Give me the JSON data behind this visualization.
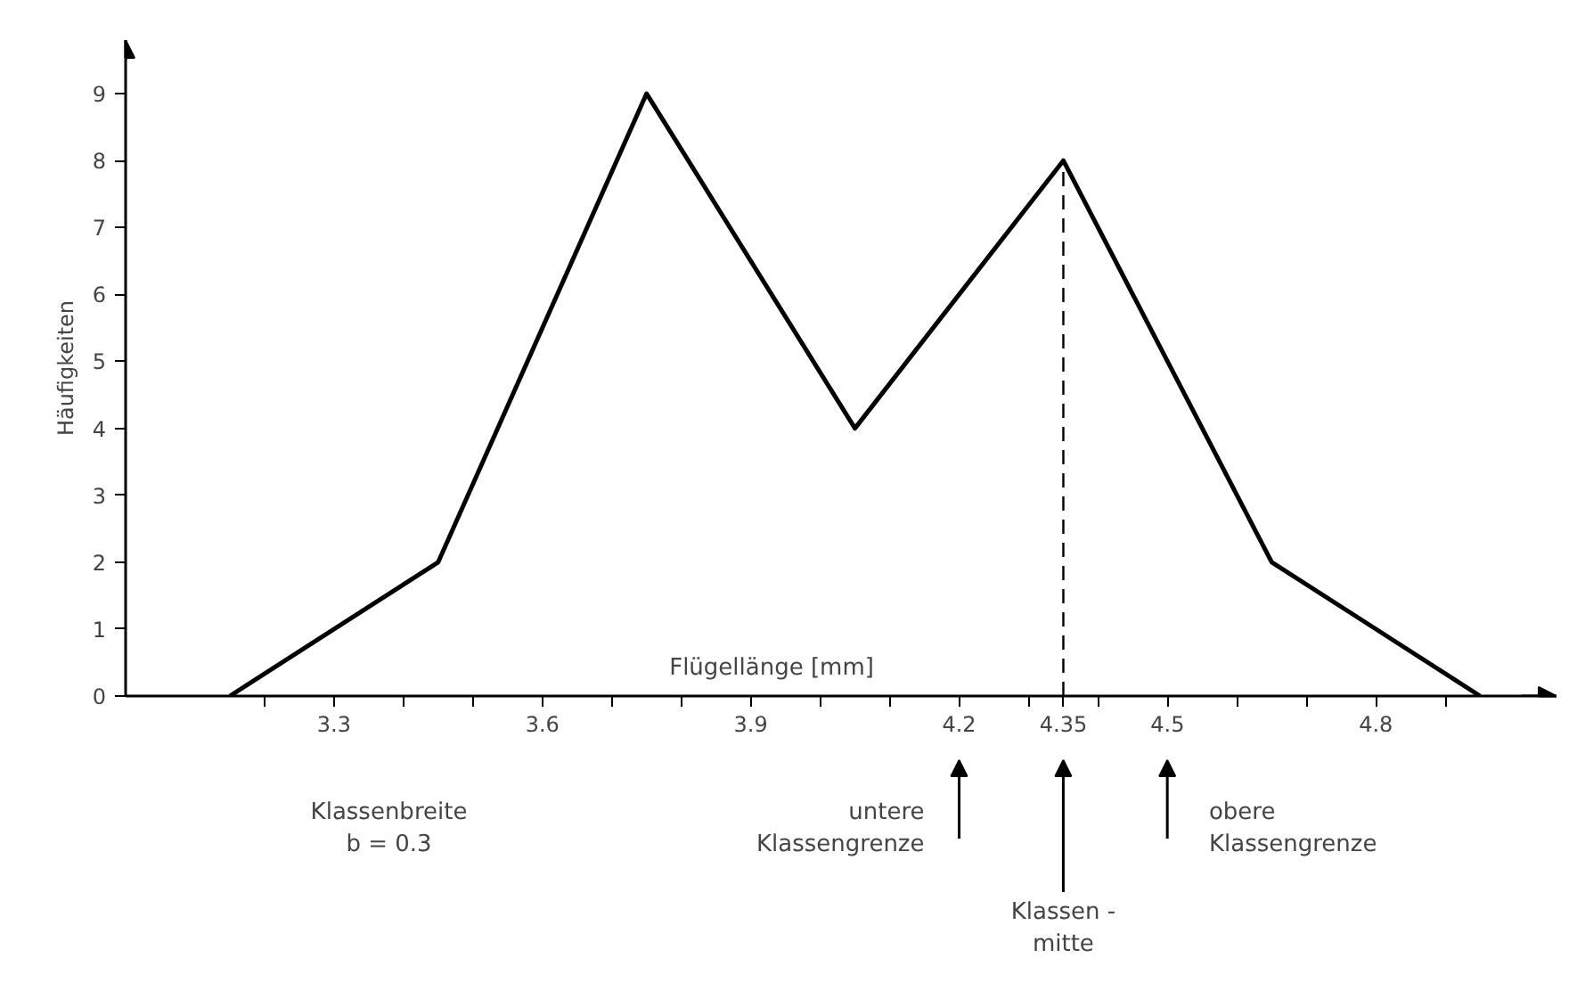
{
  "chart_data": {
    "type": "line",
    "xlabel": "Flügellänge [mm]",
    "ylabel": "Häufigkeiten",
    "x": [
      3.15,
      3.45,
      3.75,
      4.05,
      4.35,
      4.65,
      4.95
    ],
    "values": [
      0,
      2,
      9,
      4,
      8,
      2,
      0
    ],
    "color": "#000000",
    "xlim": [
      3.0,
      5.06
    ],
    "ylim": [
      0,
      9.8
    ],
    "xticks": [
      {
        "value": 3.2,
        "label": null
      },
      3.3,
      {
        "value": 3.4,
        "label": null
      },
      {
        "value": 3.5,
        "label": null
      },
      3.6,
      {
        "value": 3.7,
        "label": null
      },
      {
        "value": 3.8,
        "label": null
      },
      3.9,
      {
        "value": 4.0,
        "label": null
      },
      {
        "value": 4.1,
        "label": null
      },
      4.2,
      {
        "value": 4.3,
        "label": null
      },
      4.35,
      {
        "value": 4.4,
        "label": null
      },
      4.5,
      {
        "value": 4.6,
        "label": null
      },
      {
        "value": 4.7,
        "label": null
      },
      4.8,
      {
        "value": 4.9,
        "label": null
      }
    ],
    "yticks": [
      0,
      1,
      2,
      3,
      4,
      5,
      6,
      7,
      8,
      9
    ],
    "ref_lines": [
      {
        "axis": "x",
        "value": 4.35,
        "line_style": "dashed"
      }
    ],
    "annotations": [
      "Klassenbreite\nb = 0.3",
      "untere\nKlassengrenze",
      "Klassen -\nmitte",
      "obere\nKlassengrenze"
    ]
  }
}
